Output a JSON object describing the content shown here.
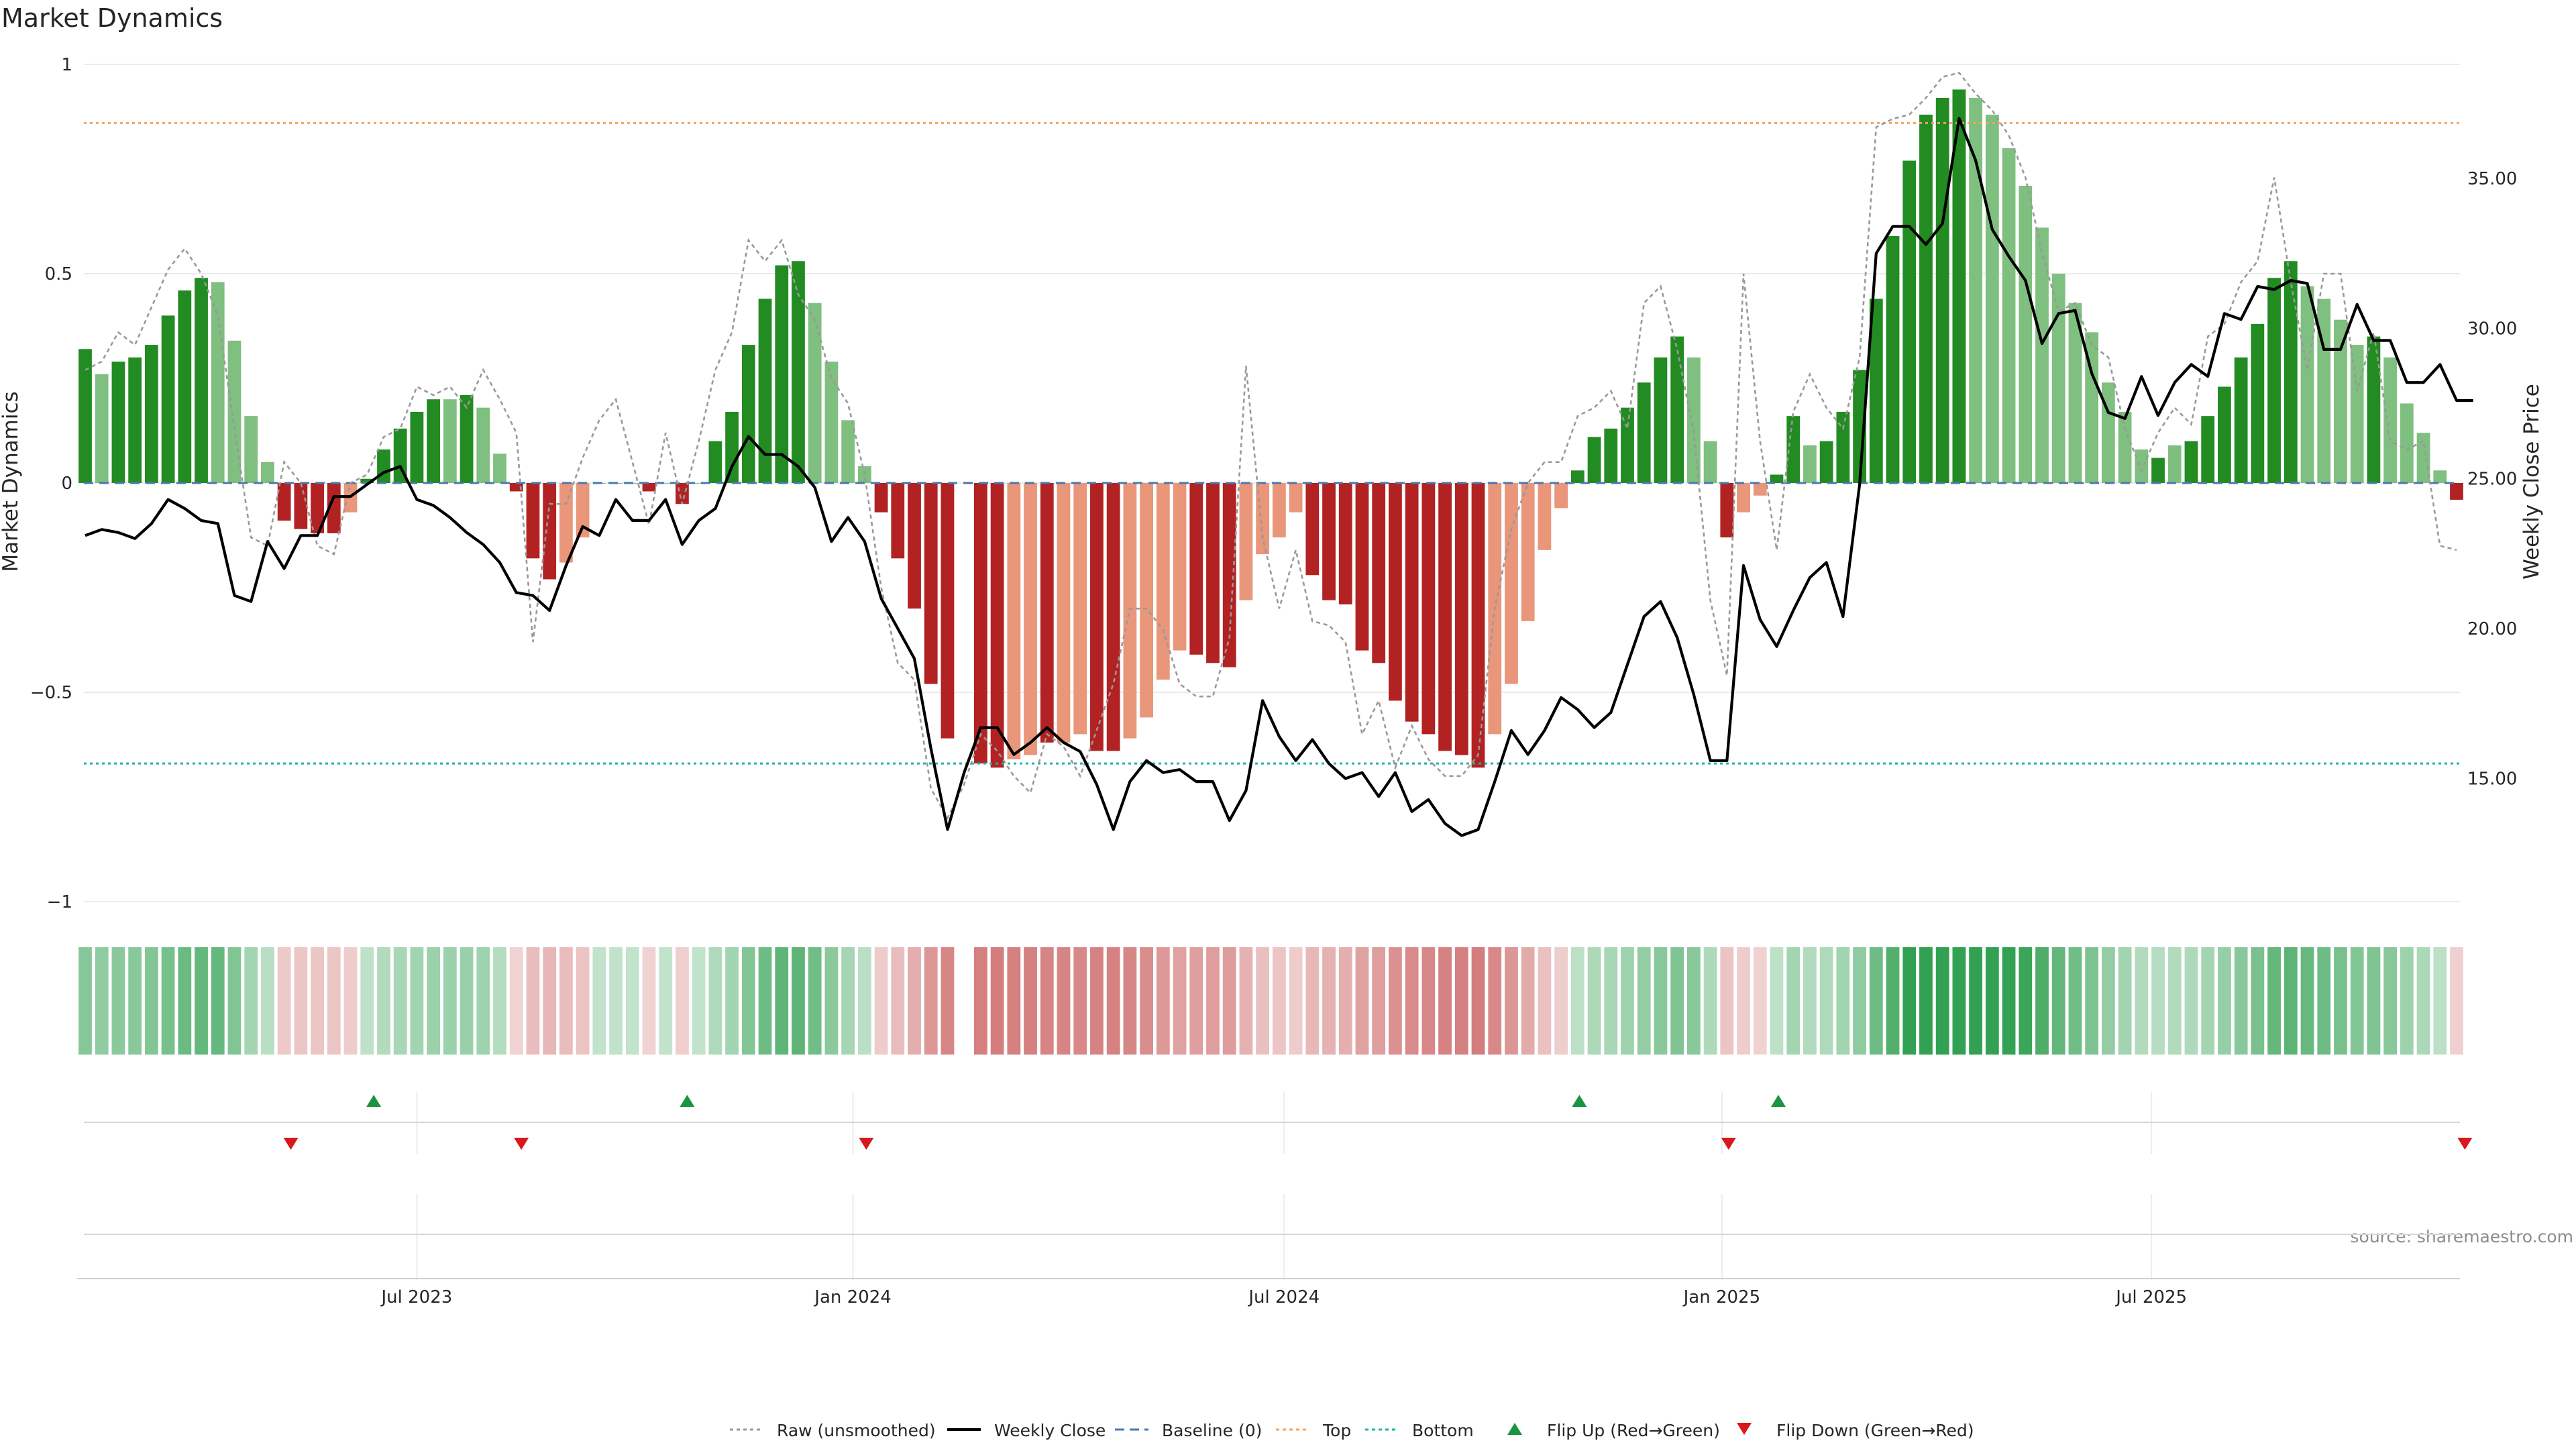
{
  "chart_data": {
    "type": "bar",
    "title": "Market Dynamics",
    "ylabel_left": "Market Dynamics",
    "ylabel_right": "Weekly Close Price",
    "ylim_left": [
      -1,
      1
    ],
    "ylim_right": [
      10.9,
      38.8
    ],
    "yticks_left": [
      {
        "value": 1,
        "label": "1"
      },
      {
        "value": 0.5,
        "label": "0.5"
      },
      {
        "value": 0,
        "label": "0"
      },
      {
        "value": -0.5,
        "label": "−0.5"
      },
      {
        "value": -1,
        "label": "−1"
      }
    ],
    "yticks_right": [
      {
        "value": 35,
        "label": "35.00"
      },
      {
        "value": 30,
        "label": "30.00"
      },
      {
        "value": 25,
        "label": "25.00"
      },
      {
        "value": 20,
        "label": "20.00"
      },
      {
        "value": 15,
        "label": "15.00"
      }
    ],
    "xticks": [
      {
        "week": 20,
        "label": "Jul 2023"
      },
      {
        "week": 46.3,
        "label": "Jan 2024"
      },
      {
        "week": 72.3,
        "label": "Jul 2024"
      },
      {
        "week": 98.7,
        "label": "Jan 2025"
      },
      {
        "week": 124.6,
        "label": "Jul 2025"
      }
    ],
    "x_start": "2023-02-06",
    "x_interval": "1 week",
    "top_line": 0.86,
    "bottom_line": -0.67,
    "baseline": 0,
    "grid": true,
    "legend_position": "bottom-center",
    "colors": {
      "pos_strong": "#228b22",
      "pos_light": "#7fbf7f",
      "neg_strong": "#b22222",
      "neg_light": "#e9967a",
      "raw": "#999999",
      "close": "#000000",
      "baseline": "#4a78b0",
      "top": "#f4a460",
      "bottom": "#20b2aa",
      "flip_up": "#1a9641",
      "flip_down": "#d7191c"
    },
    "bars": [
      0.32,
      0.26,
      0.29,
      0.3,
      0.33,
      0.4,
      0.46,
      0.49,
      0.48,
      0.34,
      0.16,
      0.05,
      -0.09,
      -0.11,
      -0.12,
      -0.12,
      -0.07,
      0.01,
      0.08,
      0.13,
      0.17,
      0.2,
      0.2,
      0.21,
      0.18,
      0.07,
      -0.02,
      -0.18,
      -0.23,
      -0.19,
      -0.13,
      0,
      0,
      0,
      -0.02,
      0,
      -0.05,
      0,
      0.1,
      0.17,
      0.33,
      0.44,
      0.52,
      0.53,
      0.43,
      0.29,
      0.15,
      0.04,
      -0.07,
      -0.18,
      -0.3,
      -0.48,
      -0.61,
      null,
      -0.67,
      -0.68,
      -0.66,
      -0.65,
      -0.62,
      -0.62,
      -0.6,
      -0.64,
      -0.64,
      -0.61,
      -0.56,
      -0.47,
      -0.4,
      -0.41,
      -0.43,
      -0.44,
      -0.28,
      -0.17,
      -0.13,
      -0.07,
      -0.22,
      -0.28,
      -0.29,
      -0.4,
      -0.43,
      -0.52,
      -0.57,
      -0.6,
      -0.64,
      -0.65,
      -0.68,
      -0.6,
      -0.48,
      -0.33,
      -0.16,
      -0.06,
      0.03,
      0.11,
      0.13,
      0.18,
      0.24,
      0.3,
      0.35,
      0.3,
      0.1,
      -0.13,
      -0.07,
      -0.03,
      0.02,
      0.16,
      0.09,
      0.1,
      0.17,
      0.27,
      0.44,
      0.59,
      0.77,
      0.88,
      0.92,
      0.94,
      0.92,
      0.88,
      0.8,
      0.71,
      0.61,
      0.5,
      0.43,
      0.36,
      0.24,
      0.17,
      0.08,
      0.06,
      0.09,
      0.1,
      0.16,
      0.23,
      0.3,
      0.38,
      0.49,
      0.53,
      0.47,
      0.44,
      0.39,
      0.33,
      0.35,
      0.3,
      0.19,
      0.12,
      0.03,
      -0.04
    ],
    "bar_shades": [
      "strong",
      "light",
      "strong",
      "strong",
      "strong",
      "strong",
      "strong",
      "strong",
      "light",
      "light",
      "light",
      "light",
      "strong",
      "strong",
      "strong",
      "strong",
      "light",
      "strong",
      "strong",
      "strong",
      "strong",
      "strong",
      "light",
      "strong",
      "light",
      "light",
      "strong",
      "strong",
      "strong",
      "light",
      "light",
      "strong",
      "strong",
      "strong",
      "strong",
      "strong",
      "strong",
      "strong",
      "strong",
      "strong",
      "strong",
      "strong",
      "strong",
      "strong",
      "light",
      "light",
      "light",
      "light",
      "strong",
      "strong",
      "strong",
      "strong",
      "strong",
      null,
      "strong",
      "strong",
      "light",
      "light",
      "strong",
      "light",
      "light",
      "strong",
      "strong",
      "light",
      "light",
      "light",
      "light",
      "strong",
      "strong",
      "strong",
      "light",
      "light",
      "light",
      "light",
      "strong",
      "strong",
      "strong",
      "strong",
      "strong",
      "strong",
      "strong",
      "strong",
      "strong",
      "strong",
      "strong",
      "light",
      "light",
      "light",
      "light",
      "light",
      "strong",
      "strong",
      "strong",
      "strong",
      "strong",
      "strong",
      "strong",
      "light",
      "light",
      "strong",
      "light",
      "light",
      "strong",
      "strong",
      "light",
      "strong",
      "strong",
      "strong",
      "strong",
      "strong",
      "strong",
      "strong",
      "strong",
      "strong",
      "light",
      "light",
      "light",
      "light",
      "light",
      "light",
      "light",
      "light",
      "light",
      "light",
      "light",
      "strong",
      "light",
      "strong",
      "strong",
      "strong",
      "strong",
      "strong",
      "strong",
      "strong",
      "light",
      "light",
      "light",
      "light",
      "strong",
      "light",
      "light",
      "light",
      "light",
      "strong"
    ],
    "raw_series": [
      0.27,
      0.29,
      0.36,
      0.33,
      0.42,
      0.51,
      0.56,
      0.5,
      0.4,
      0.13,
      -0.13,
      -0.15,
      0.05,
      0.0,
      -0.15,
      -0.17,
      0.0,
      0.02,
      0.11,
      0.13,
      0.23,
      0.21,
      0.23,
      0.18,
      0.27,
      0.2,
      0.12,
      -0.38,
      -0.05,
      -0.05,
      0.06,
      0.15,
      0.2,
      0.05,
      -0.1,
      0.12,
      -0.05,
      0.1,
      0.27,
      0.36,
      0.58,
      0.53,
      0.58,
      0.45,
      0.39,
      0.25,
      0.19,
      0.02,
      -0.25,
      -0.43,
      -0.47,
      -0.73,
      -0.8,
      -0.72,
      -0.6,
      -0.64,
      -0.7,
      -0.74,
      -0.6,
      -0.63,
      -0.7,
      -0.59,
      -0.48,
      -0.3,
      -0.3,
      -0.35,
      -0.48,
      -0.51,
      -0.51,
      -0.37,
      0.28,
      -0.13,
      -0.3,
      -0.16,
      -0.33,
      -0.34,
      -0.38,
      -0.6,
      -0.52,
      -0.68,
      -0.58,
      -0.66,
      -0.7,
      -0.7,
      -0.65,
      -0.3,
      -0.11,
      0.0,
      0.05,
      0.05,
      0.16,
      0.18,
      0.22,
      0.13,
      0.43,
      0.47,
      0.32,
      0.12,
      -0.28,
      -0.46,
      0.5,
      0.1,
      -0.16,
      0.17,
      0.26,
      0.18,
      0.13,
      0.3,
      0.85,
      0.87,
      0.88,
      0.92,
      0.97,
      0.98,
      0.93,
      0.89,
      0.83,
      0.73,
      0.55,
      0.41,
      0.43,
      0.33,
      0.3,
      0.13,
      0.03,
      0.12,
      0.18,
      0.14,
      0.35,
      0.38,
      0.48,
      0.53,
      0.73,
      0.48,
      0.27,
      0.5,
      0.5,
      0.22,
      0.36,
      0.1,
      0.08,
      0.1,
      -0.15,
      -0.16
    ],
    "weekly_close": [
      23.1,
      23.3,
      23.2,
      23.0,
      23.5,
      24.3,
      24.0,
      23.6,
      23.5,
      21.1,
      20.9,
      22.9,
      22.0,
      23.1,
      23.1,
      24.4,
      24.4,
      24.8,
      25.2,
      25.4,
      24.3,
      24.1,
      23.7,
      23.2,
      22.8,
      22.2,
      21.2,
      21.1,
      20.6,
      22.1,
      23.4,
      23.1,
      24.3,
      23.6,
      23.6,
      24.3,
      22.8,
      23.6,
      24.0,
      25.4,
      26.4,
      25.8,
      25.8,
      25.4,
      24.7,
      22.9,
      23.7,
      22.9,
      21.0,
      20.0,
      19.0,
      16.0,
      13.3,
      15.2,
      16.7,
      16.7,
      15.8,
      16.2,
      16.7,
      16.2,
      15.9,
      14.8,
      13.3,
      14.9,
      15.6,
      15.2,
      15.3,
      14.9,
      14.9,
      13.6,
      14.6,
      17.6,
      16.4,
      15.6,
      16.3,
      15.5,
      15.0,
      15.2,
      14.4,
      15.2,
      13.9,
      14.3,
      13.5,
      13.1,
      13.3,
      14.9,
      16.6,
      15.8,
      16.6,
      17.7,
      17.3,
      16.7,
      17.2,
      18.8,
      20.4,
      20.9,
      19.7,
      17.8,
      15.6,
      15.6,
      22.1,
      20.3,
      19.4,
      20.6,
      21.7,
      22.2,
      20.4,
      24.8,
      32.5,
      33.4,
      33.4,
      32.8,
      33.5,
      37.0,
      35.6,
      33.3,
      32.4,
      31.6,
      29.5,
      30.5,
      30.6,
      28.5,
      27.2,
      27.0,
      28.4,
      27.1,
      28.2,
      28.8,
      28.4,
      30.5,
      30.3,
      31.4,
      31.3,
      31.6,
      31.5,
      29.3,
      29.3,
      30.8,
      29.6,
      29.6,
      28.2,
      28.2,
      28.8,
      27.6,
      27.6
    ],
    "flip_up_weeks": [
      17.4,
      36.3,
      90.1,
      102.1
    ],
    "flip_down_weeks": [
      12.4,
      26.3,
      47.1,
      99.1,
      143.5
    ],
    "legend": [
      {
        "label": "Raw (unsmoothed)",
        "marker": "dotted-line",
        "color": "#999999"
      },
      {
        "label": "Weekly Close",
        "marker": "solid-line",
        "color": "#000000"
      },
      {
        "label": "Baseline (0)",
        "marker": "dashed-line",
        "color": "#4a78b0"
      },
      {
        "label": "Top",
        "marker": "dotted-line",
        "color": "#f4a460"
      },
      {
        "label": "Bottom",
        "marker": "dotted-line",
        "color": "#20b2aa"
      },
      {
        "label": "Flip Up (Red→Green)",
        "marker": "triangle-up",
        "color": "#1a9641"
      },
      {
        "label": "Flip Down (Green→Red)",
        "marker": "triangle-down",
        "color": "#d7191c"
      }
    ],
    "source_text": "source: sharemaestro.com"
  }
}
